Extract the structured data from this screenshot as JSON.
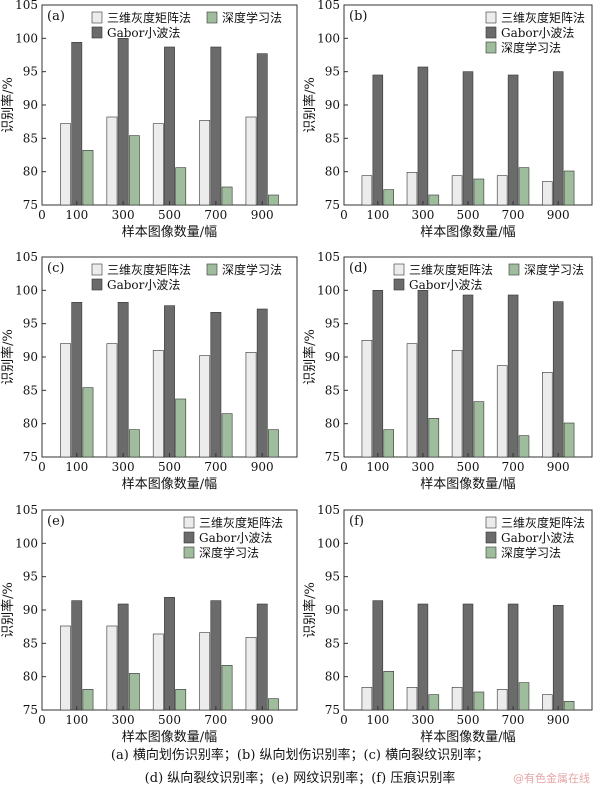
{
  "figure": {
    "caption_line1": "(a) 横向划伤识别率；(b) 纵向划伤识别率；(c) 横向裂纹识别率；",
    "caption_line2": "(d) 纵向裂纹识别率；(e) 网纹识别率；(f) 压痕识别率",
    "watermark": "@有色金属在线"
  },
  "colors": {
    "s1": "#ececec",
    "s2": "#6b6b6b",
    "s3": "#9fbd9c",
    "edge": "#333333"
  },
  "chart_data": [
    {
      "type": "bar",
      "panel": "(a)",
      "categories": [
        "100",
        "300",
        "500",
        "700",
        "900"
      ],
      "xlabel": "样本图像数量/幅",
      "ylabel": "识别率/%",
      "ylim": [
        75,
        105
      ],
      "yticks": [
        75,
        80,
        85,
        90,
        95,
        100,
        105
      ],
      "x_origin_label": "0",
      "legend_layout": "a",
      "series": [
        {
          "name": "三维灰度矩阵法",
          "values": [
            87.2,
            88.2,
            87.2,
            87.7,
            88.2
          ]
        },
        {
          "name": "Gabor小波法",
          "values": [
            99.4,
            100.0,
            98.7,
            98.7,
            97.7
          ]
        },
        {
          "name": "深度学习法",
          "values": [
            83.2,
            85.4,
            80.6,
            77.7,
            76.5
          ]
        }
      ]
    },
    {
      "type": "bar",
      "panel": "(b)",
      "categories": [
        "100",
        "300",
        "500",
        "700",
        "900"
      ],
      "xlabel": "样本图像数量/幅",
      "ylabel": "识别率/%",
      "ylim": [
        75,
        105
      ],
      "yticks": [
        75,
        80,
        85,
        90,
        95,
        100,
        105
      ],
      "x_origin_label": "0",
      "legend_layout": "b",
      "series": [
        {
          "name": "三维灰度矩阵法",
          "values": [
            79.4,
            79.9,
            79.4,
            79.4,
            78.5
          ]
        },
        {
          "name": "Gabor小波法",
          "values": [
            94.5,
            95.7,
            95.0,
            94.5,
            95.0
          ]
        },
        {
          "name": "深度学习法",
          "values": [
            77.3,
            76.5,
            78.9,
            80.6,
            80.1
          ]
        }
      ]
    },
    {
      "type": "bar",
      "panel": "(c)",
      "categories": [
        "100",
        "300",
        "500",
        "700",
        "900"
      ],
      "xlabel": "样本图像数量/幅",
      "ylabel": "识别率/%",
      "ylim": [
        75,
        105
      ],
      "yticks": [
        75,
        80,
        85,
        90,
        95,
        100,
        105
      ],
      "x_origin_label": "0",
      "legend_layout": "a",
      "series": [
        {
          "name": "三维灰度矩阵法",
          "values": [
            92.0,
            92.0,
            91.0,
            90.2,
            90.7
          ]
        },
        {
          "name": "Gabor小波法",
          "values": [
            98.2,
            98.2,
            97.7,
            96.7,
            97.2
          ]
        },
        {
          "name": "深度学习法",
          "values": [
            85.4,
            79.1,
            83.7,
            81.5,
            79.1
          ]
        }
      ]
    },
    {
      "type": "bar",
      "panel": "(d)",
      "categories": [
        "100",
        "300",
        "500",
        "700",
        "900"
      ],
      "xlabel": "样本图像数量/幅",
      "ylabel": "识别率/%",
      "ylim": [
        75,
        105
      ],
      "yticks": [
        75,
        80,
        85,
        90,
        95,
        100,
        105
      ],
      "x_origin_label": "0",
      "legend_layout": "a",
      "series": [
        {
          "name": "三维灰度矩阵法",
          "values": [
            92.5,
            92.0,
            91.0,
            88.7,
            87.7
          ]
        },
        {
          "name": "Gabor小波法",
          "values": [
            100.0,
            100.0,
            99.3,
            99.3,
            98.3
          ]
        },
        {
          "name": "深度学习法",
          "values": [
            79.1,
            80.8,
            83.3,
            78.2,
            80.1
          ]
        }
      ]
    },
    {
      "type": "bar",
      "panel": "(e)",
      "categories": [
        "100",
        "300",
        "500",
        "700",
        "900"
      ],
      "xlabel": "样本图像数量/幅",
      "ylabel": "识别率/%",
      "ylim": [
        75,
        105
      ],
      "yticks": [
        75,
        80,
        85,
        90,
        95,
        100,
        105
      ],
      "x_origin_label": "0",
      "legend_layout": "b",
      "series": [
        {
          "name": "三维灰度矩阵法",
          "values": [
            87.6,
            87.6,
            86.4,
            86.6,
            85.9
          ]
        },
        {
          "name": "Gabor小波法",
          "values": [
            91.4,
            90.9,
            91.9,
            91.4,
            90.9
          ]
        },
        {
          "name": "深度学习法",
          "values": [
            78.1,
            80.5,
            78.1,
            81.7,
            76.7
          ]
        }
      ]
    },
    {
      "type": "bar",
      "panel": "(f)",
      "categories": [
        "100",
        "300",
        "500",
        "700",
        "900"
      ],
      "xlabel": "样本图像数量/幅",
      "ylabel": "识别率/%",
      "ylim": [
        75,
        105
      ],
      "yticks": [
        75,
        80,
        85,
        90,
        95,
        100,
        105
      ],
      "x_origin_label": "0",
      "legend_layout": "b",
      "series": [
        {
          "name": "三维灰度矩阵法",
          "values": [
            78.4,
            78.4,
            78.4,
            78.1,
            77.3
          ]
        },
        {
          "name": "Gabor小波法",
          "values": [
            91.4,
            90.9,
            90.9,
            90.9,
            90.7
          ]
        },
        {
          "name": "深度学习法",
          "values": [
            80.8,
            77.3,
            77.7,
            79.1,
            76.3
          ]
        }
      ]
    }
  ]
}
